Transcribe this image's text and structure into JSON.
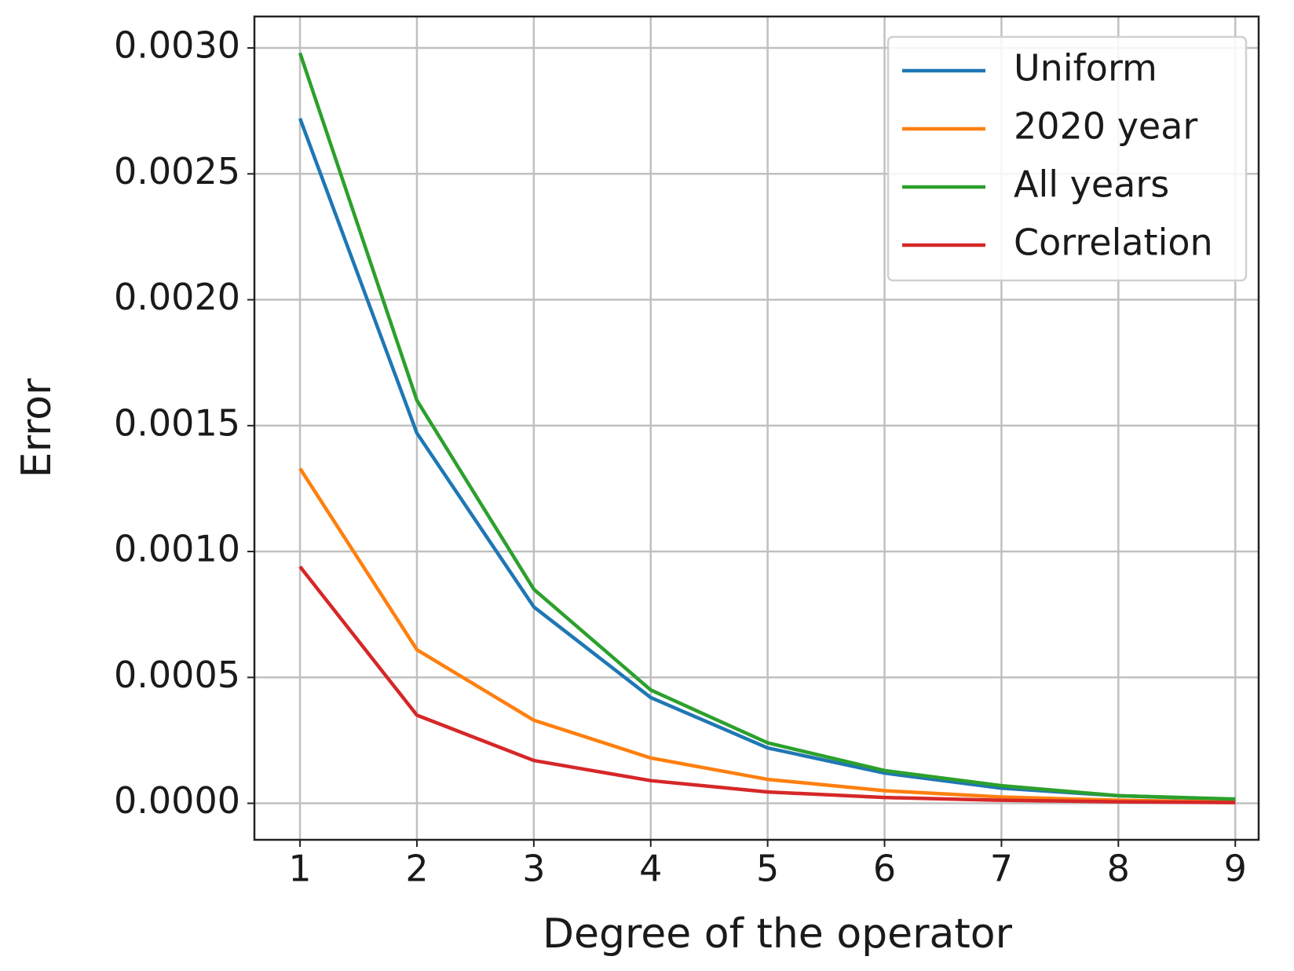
{
  "chart_data": {
    "type": "line",
    "xlabel": "Degree of the operator",
    "ylabel": "Error",
    "x": [
      1,
      2,
      3,
      4,
      5,
      6,
      7,
      8,
      9
    ],
    "series": [
      {
        "name": "Uniform",
        "color": "#1f77b4",
        "values": [
          0.00272,
          0.00147,
          0.00078,
          0.00042,
          0.00022,
          0.00012,
          6e-05,
          3e-05,
          1.5e-05
        ]
      },
      {
        "name": "2020 year",
        "color": "#ff7f0e",
        "values": [
          0.00133,
          0.00061,
          0.00033,
          0.00018,
          9.5e-05,
          5e-05,
          2.5e-05,
          1.2e-05,
          5e-06
        ]
      },
      {
        "name": "All years",
        "color": "#2ca02c",
        "values": [
          0.00298,
          0.0016,
          0.00085,
          0.00045,
          0.00024,
          0.00013,
          7e-05,
          3e-05,
          1.7e-05
        ]
      },
      {
        "name": "Correlation",
        "color": "#d62728",
        "values": [
          0.00094,
          0.00035,
          0.00017,
          9e-05,
          4.5e-05,
          2.3e-05,
          1.2e-05,
          6e-06,
          3e-06
        ]
      }
    ],
    "xlim": [
      0.61,
      9.2
    ],
    "xticks": [
      1,
      2,
      3,
      4,
      5,
      6,
      7,
      8,
      9
    ],
    "ylim": [
      -0.000145,
      0.003125
    ],
    "yticks": [
      {
        "value": 0,
        "label": "0.0000"
      },
      {
        "value": 0.0005,
        "label": "0.0005"
      },
      {
        "value": 0.001,
        "label": "0.0010"
      },
      {
        "value": 0.0015,
        "label": "0.0015"
      },
      {
        "value": 0.002,
        "label": "0.0020"
      },
      {
        "value": 0.0025,
        "label": "0.0025"
      },
      {
        "value": 0.003,
        "label": "0.0030"
      }
    ],
    "grid": true,
    "legend": "upper right"
  }
}
